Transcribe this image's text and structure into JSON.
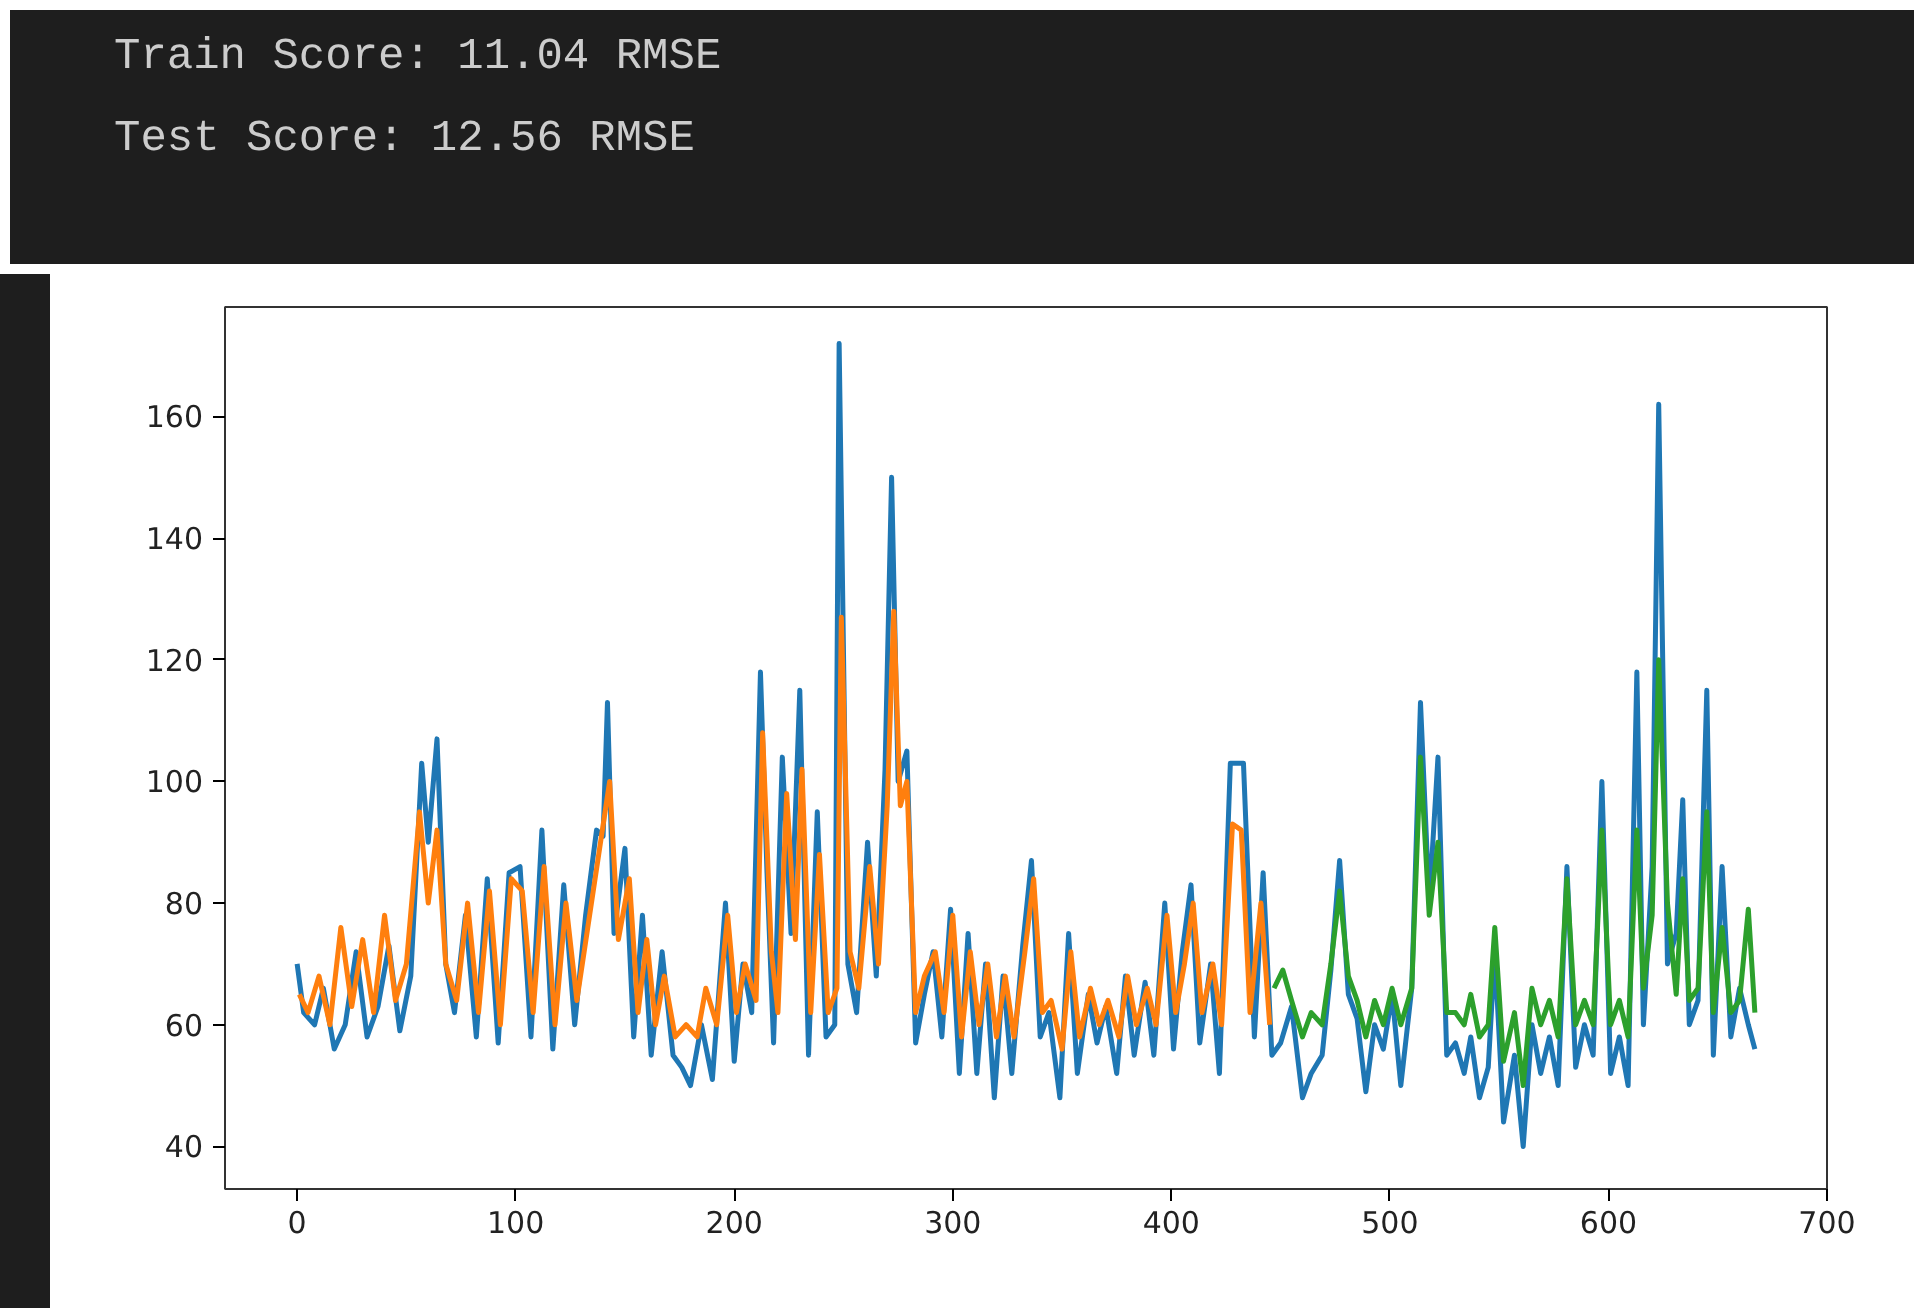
{
  "chart_data": {
    "type": "line",
    "annotations": [
      "Train Score: 11.04 RMSE",
      "Test Score: 12.56 RMSE"
    ],
    "xlim": [
      -33,
      700
    ],
    "ylim": [
      33,
      178
    ],
    "xticks": [
      0,
      100,
      200,
      300,
      400,
      500,
      600,
      700
    ],
    "yticks": [
      40,
      60,
      80,
      100,
      120,
      140,
      160
    ],
    "grid": false,
    "series": [
      {
        "color": "#1f77b4",
        "x": [
          0,
          3,
          8,
          12,
          17,
          22,
          27,
          32,
          37,
          42,
          47,
          52,
          57,
          60,
          64,
          68,
          72,
          77,
          82,
          87,
          92,
          97,
          102,
          107,
          112,
          117,
          122,
          127,
          132,
          137,
          140,
          142,
          145,
          150,
          154,
          158,
          162,
          167,
          172,
          176,
          180,
          185,
          190,
          196,
          200,
          204,
          208,
          212,
          215,
          218,
          222,
          226,
          230,
          234,
          238,
          242,
          246,
          248,
          252,
          256,
          261,
          265,
          269,
          272,
          275,
          279,
          283,
          287,
          291,
          295,
          299,
          303,
          307,
          311,
          315,
          319,
          323,
          327,
          332,
          336,
          340,
          344,
          349,
          353,
          357,
          362,
          366,
          370,
          375,
          379,
          383,
          388,
          392,
          397,
          401,
          405,
          409,
          413,
          418,
          422,
          427,
          433,
          438,
          442,
          446,
          450,
          455,
          460,
          464,
          469,
          473,
          477,
          481,
          485,
          489,
          493,
          497,
          501,
          505,
          510,
          514,
          518,
          522,
          526,
          530,
          534,
          537,
          541,
          545,
          548,
          552,
          557,
          561,
          565,
          569,
          573,
          577,
          581,
          585,
          589,
          593,
          597,
          601,
          605,
          609,
          613,
          616,
          620,
          623,
          627,
          631,
          634,
          637,
          641,
          645,
          648,
          652,
          656,
          660,
          664,
          667
        ],
        "values": [
          70,
          62,
          60,
          66,
          56,
          60,
          72,
          58,
          63,
          73,
          59,
          68,
          103,
          90,
          107,
          70,
          62,
          78,
          58,
          84,
          57,
          85,
          86,
          58,
          92,
          56,
          83,
          60,
          78,
          92,
          91,
          113,
          75,
          89,
          58,
          78,
          55,
          72,
          55,
          53,
          50,
          60,
          51,
          80,
          54,
          70,
          62,
          118,
          85,
          57,
          104,
          75,
          115,
          55,
          95,
          58,
          60,
          172,
          70,
          62,
          90,
          68,
          102,
          150,
          100,
          105,
          57,
          65,
          72,
          58,
          79,
          52,
          75,
          52,
          70,
          48,
          68,
          52,
          73,
          87,
          58,
          62,
          48,
          75,
          52,
          65,
          57,
          63,
          52,
          68,
          55,
          67,
          55,
          80,
          56,
          72,
          83,
          57,
          70,
          52,
          103,
          103,
          58,
          85,
          55,
          57,
          63,
          48,
          52,
          55,
          69,
          87,
          65,
          61,
          49,
          60,
          56,
          65,
          50,
          66,
          113,
          80,
          104,
          55,
          57,
          52,
          58,
          48,
          53,
          72,
          44,
          55,
          40,
          60,
          52,
          58,
          50,
          86,
          53,
          60,
          55,
          100,
          52,
          58,
          50,
          118,
          60,
          86,
          162,
          70,
          75,
          97,
          60,
          64,
          115,
          55,
          86,
          58,
          66,
          60,
          56
        ]
      },
      {
        "color": "#ff7f0e",
        "x": [
          1,
          5,
          10,
          15,
          20,
          25,
          30,
          35,
          40,
          45,
          50,
          56,
          60,
          64,
          68,
          73,
          78,
          83,
          88,
          93,
          98,
          103,
          108,
          113,
          118,
          123,
          128,
          133,
          138,
          143,
          147,
          152,
          156,
          160,
          164,
          168,
          173,
          178,
          183,
          187,
          192,
          197,
          201,
          205,
          210,
          213,
          217,
          220,
          224,
          228,
          231,
          235,
          239,
          243,
          247,
          249,
          253,
          257,
          262,
          266,
          270,
          273,
          276,
          279,
          283,
          287,
          292,
          296,
          300,
          304,
          308,
          312,
          316,
          320,
          324,
          328,
          333,
          337,
          341,
          345,
          350,
          354,
          358,
          363,
          367,
          371,
          376,
          380,
          384,
          389,
          393,
          398,
          402,
          406,
          410,
          414,
          419,
          423,
          428,
          432,
          436,
          441,
          445
        ],
        "values": [
          65,
          62,
          68,
          60,
          76,
          63,
          74,
          62,
          78,
          64,
          70,
          95,
          80,
          92,
          70,
          64,
          80,
          62,
          82,
          60,
          84,
          82,
          62,
          86,
          60,
          80,
          64,
          76,
          88,
          100,
          74,
          84,
          62,
          74,
          60,
          68,
          58,
          60,
          58,
          66,
          60,
          78,
          62,
          70,
          64,
          108,
          72,
          62,
          98,
          74,
          102,
          62,
          88,
          62,
          66,
          127,
          72,
          66,
          86,
          70,
          96,
          128,
          96,
          100,
          62,
          68,
          72,
          62,
          78,
          58,
          72,
          60,
          70,
          58,
          68,
          58,
          72,
          84,
          62,
          64,
          56,
          72,
          58,
          66,
          60,
          64,
          58,
          68,
          60,
          66,
          60,
          78,
          62,
          70,
          80,
          62,
          70,
          60,
          93,
          92,
          62,
          80,
          60
        ]
      },
      {
        "color": "#2ca02c",
        "x": [
          447,
          451,
          455,
          460,
          464,
          469,
          473,
          477,
          481,
          485,
          489,
          493,
          497,
          501,
          505,
          510,
          514,
          518,
          522,
          526,
          530,
          534,
          537,
          541,
          545,
          548,
          552,
          557,
          561,
          565,
          569,
          573,
          577,
          581,
          585,
          589,
          593,
          597,
          601,
          605,
          609,
          613,
          616,
          620,
          623,
          627,
          631,
          634,
          637,
          641,
          645,
          648,
          652,
          656,
          660,
          664,
          667
        ],
        "values": [
          66,
          69,
          64,
          58,
          62,
          60,
          70,
          82,
          68,
          64,
          58,
          64,
          60,
          66,
          60,
          66,
          104,
          78,
          90,
          62,
          62,
          60,
          65,
          58,
          60,
          76,
          54,
          62,
          50,
          66,
          60,
          64,
          58,
          84,
          60,
          64,
          60,
          92,
          60,
          64,
          58,
          92,
          66,
          78,
          120,
          80,
          65,
          84,
          64,
          66,
          95,
          62,
          76,
          62,
          64,
          79,
          62
        ]
      }
    ]
  }
}
